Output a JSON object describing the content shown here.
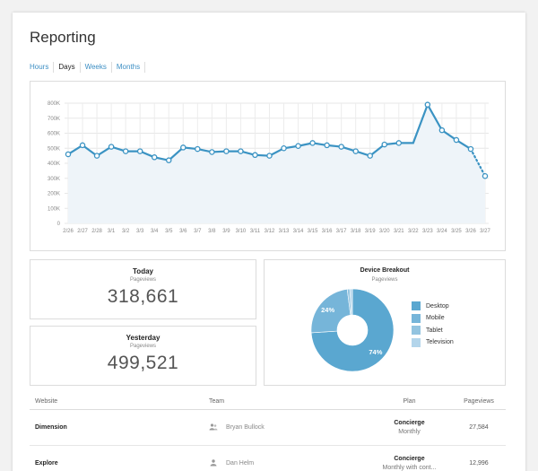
{
  "page": {
    "title": "Reporting"
  },
  "tabs": [
    "Hours",
    "Days",
    "Weeks",
    "Months"
  ],
  "active_tab": "Days",
  "chart_data": {
    "type": "line",
    "x": [
      "2/26",
      "2/27",
      "2/28",
      "3/1",
      "3/2",
      "3/3",
      "3/4",
      "3/5",
      "3/6",
      "3/7",
      "3/8",
      "3/9",
      "3/10",
      "3/11",
      "3/12",
      "3/13",
      "3/14",
      "3/15",
      "3/16",
      "3/17",
      "3/18",
      "3/19",
      "3/20",
      "3/21",
      "3/22",
      "3/23",
      "3/24",
      "3/25",
      "3/26",
      "3/27"
    ],
    "values": [
      460000,
      520000,
      450000,
      510000,
      480000,
      480000,
      440000,
      420000,
      505000,
      495000,
      475000,
      480000,
      480000,
      455000,
      450000,
      500000,
      515000,
      535000,
      520000,
      510000,
      480000,
      450000,
      525000,
      535000,
      535000,
      790000,
      620000,
      555000,
      495000,
      315000
    ],
    "projected_from_index": 28,
    "ylim": [
      0,
      800000
    ],
    "yticks": [
      "0",
      "100K",
      "200K",
      "300K",
      "400K",
      "500K",
      "600K",
      "700K",
      "800K"
    ],
    "line_color": "#3b93c3",
    "fill_color": "#eef4f9",
    "grid": true
  },
  "stats": {
    "today": {
      "label": "Today",
      "sub": "Pageviews",
      "value": "318,661"
    },
    "yesterday": {
      "label": "Yesterday",
      "sub": "Pageviews",
      "value": "499,521"
    }
  },
  "device": {
    "title": "Device Breakout",
    "sub": "Pageviews",
    "chart_data": {
      "type": "pie",
      "labels": [
        "Desktop",
        "Mobile",
        "Tablet",
        "Television"
      ],
      "values": [
        74,
        24,
        1,
        1
      ],
      "data_labels": [
        "74%",
        "24%",
        "",
        ""
      ],
      "colors": [
        "#5aa7d0",
        "#76b5d9",
        "#93c4e0",
        "#b3d5eb"
      ]
    }
  },
  "table": {
    "headers": [
      "Website",
      "Team",
      "Plan",
      "Pageviews"
    ],
    "rows": [
      {
        "website": "Dimension",
        "team": "Bryan Bullock",
        "team_icon": "group-icon",
        "plan": "Concierge",
        "plan_sub": "Monthly",
        "pageviews": "27,584"
      },
      {
        "website": "Explore",
        "team": "Dan Helm",
        "team_icon": "person-icon",
        "plan": "Concierge",
        "plan_sub": "Monthly with cont...",
        "pageviews": "12,996"
      }
    ]
  }
}
